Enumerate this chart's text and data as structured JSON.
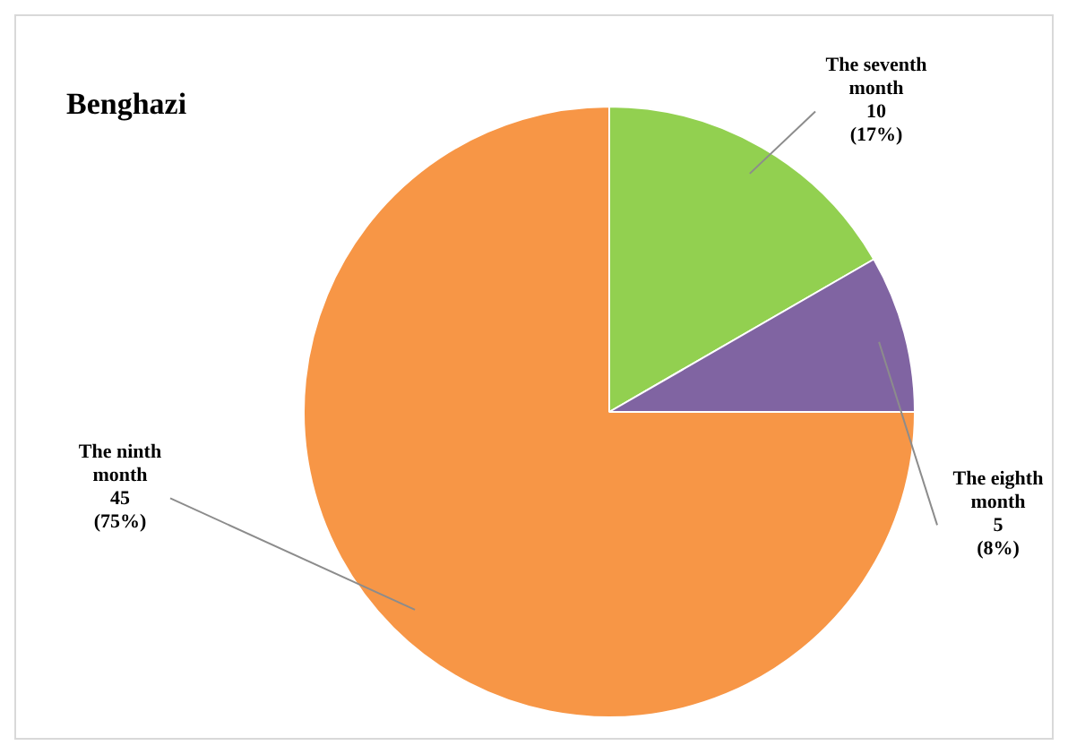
{
  "chart_data": {
    "type": "pie",
    "title": "Benghazi",
    "categories": [
      "The seventh month",
      "The eighth month",
      "The ninth month"
    ],
    "values": [
      10,
      5,
      45
    ],
    "value_labels": [
      "10 (17%)",
      "5 (8%)",
      "45 (75%)"
    ],
    "colors": [
      "#92d050",
      "#8064a2",
      "#f79646"
    ],
    "legend": false
  }
}
